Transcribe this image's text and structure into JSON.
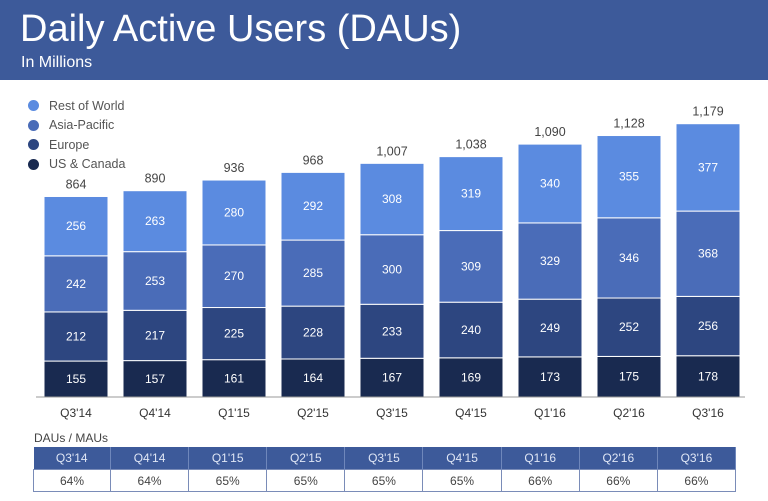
{
  "header": {
    "title": "Daily Active Users (DAUs)",
    "subtitle": "In Millions"
  },
  "colors": {
    "header": "#3d5a9a",
    "Rest of World": "#5b8be0",
    "Asia-Pacific": "#4a6cb8",
    "Europe": "#2d4680",
    "US & Canada": "#192a50"
  },
  "chart_data": {
    "type": "bar",
    "stacked": true,
    "categories": [
      "Q3'14",
      "Q4'14",
      "Q1'15",
      "Q2'15",
      "Q3'15",
      "Q4'15",
      "Q1'16",
      "Q2'16",
      "Q3'16"
    ],
    "series": [
      {
        "name": "US & Canada",
        "values": [
          155,
          157,
          161,
          164,
          167,
          169,
          173,
          175,
          178
        ]
      },
      {
        "name": "Europe",
        "values": [
          212,
          217,
          225,
          228,
          233,
          240,
          249,
          252,
          256
        ]
      },
      {
        "name": "Asia-Pacific",
        "values": [
          242,
          253,
          270,
          285,
          300,
          309,
          329,
          346,
          368
        ]
      },
      {
        "name": "Rest of World",
        "values": [
          256,
          263,
          280,
          292,
          308,
          319,
          340,
          355,
          377
        ]
      }
    ],
    "totals": [
      "864",
      "890",
      "936",
      "968",
      "1,007",
      "1,038",
      "1,090",
      "1,128",
      "1,179"
    ],
    "legend_position": "top-left"
  },
  "table": {
    "label": "DAUs / MAUs",
    "headers": [
      "Q3'14",
      "Q4'14",
      "Q1'15",
      "Q2'15",
      "Q3'15",
      "Q4'15",
      "Q1'16",
      "Q2'16",
      "Q3'16"
    ],
    "values": [
      "64%",
      "64%",
      "65%",
      "65%",
      "65%",
      "65%",
      "66%",
      "66%",
      "66%"
    ]
  }
}
